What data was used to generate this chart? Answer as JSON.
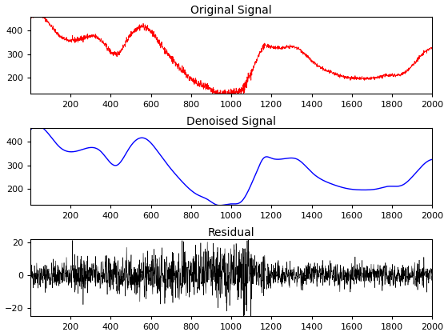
{
  "n_points": 2000,
  "seed": 42,
  "title1": "Original Signal",
  "title2": "Denoised Signal",
  "title3": "Residual",
  "color1": "#ff0000",
  "color2": "#0000ff",
  "color3": "#000000",
  "xlim": [
    1,
    2000
  ],
  "ylim1": [
    130,
    460
  ],
  "ylim2": [
    130,
    460
  ],
  "ylim3": [
    -25,
    22
  ],
  "yticks1": [
    200,
    300,
    400
  ],
  "yticks2": [
    200,
    300,
    400
  ],
  "yticks3": [
    -20,
    0,
    20
  ],
  "xticks": [
    200,
    400,
    600,
    800,
    1000,
    1200,
    1400,
    1600,
    1800,
    2000
  ],
  "linewidth1": 0.6,
  "linewidth2": 1.0,
  "linewidth3": 0.4,
  "figsize": [
    5.6,
    4.2
  ],
  "dpi": 100,
  "smooth_xp": [
    1,
    80,
    150,
    250,
    350,
    430,
    490,
    530,
    570,
    650,
    750,
    830,
    880,
    930,
    960,
    1000,
    1050,
    1100,
    1130,
    1160,
    1200,
    1280,
    1330,
    1400,
    1500,
    1580,
    1640,
    1680,
    1730,
    1780,
    1850,
    1920,
    2000
  ],
  "smooth_yp": [
    450,
    445,
    375,
    365,
    360,
    300,
    370,
    410,
    415,
    340,
    235,
    175,
    155,
    130,
    130,
    135,
    145,
    220,
    280,
    330,
    330,
    330,
    325,
    270,
    220,
    200,
    195,
    195,
    200,
    210,
    215,
    270,
    325
  ]
}
